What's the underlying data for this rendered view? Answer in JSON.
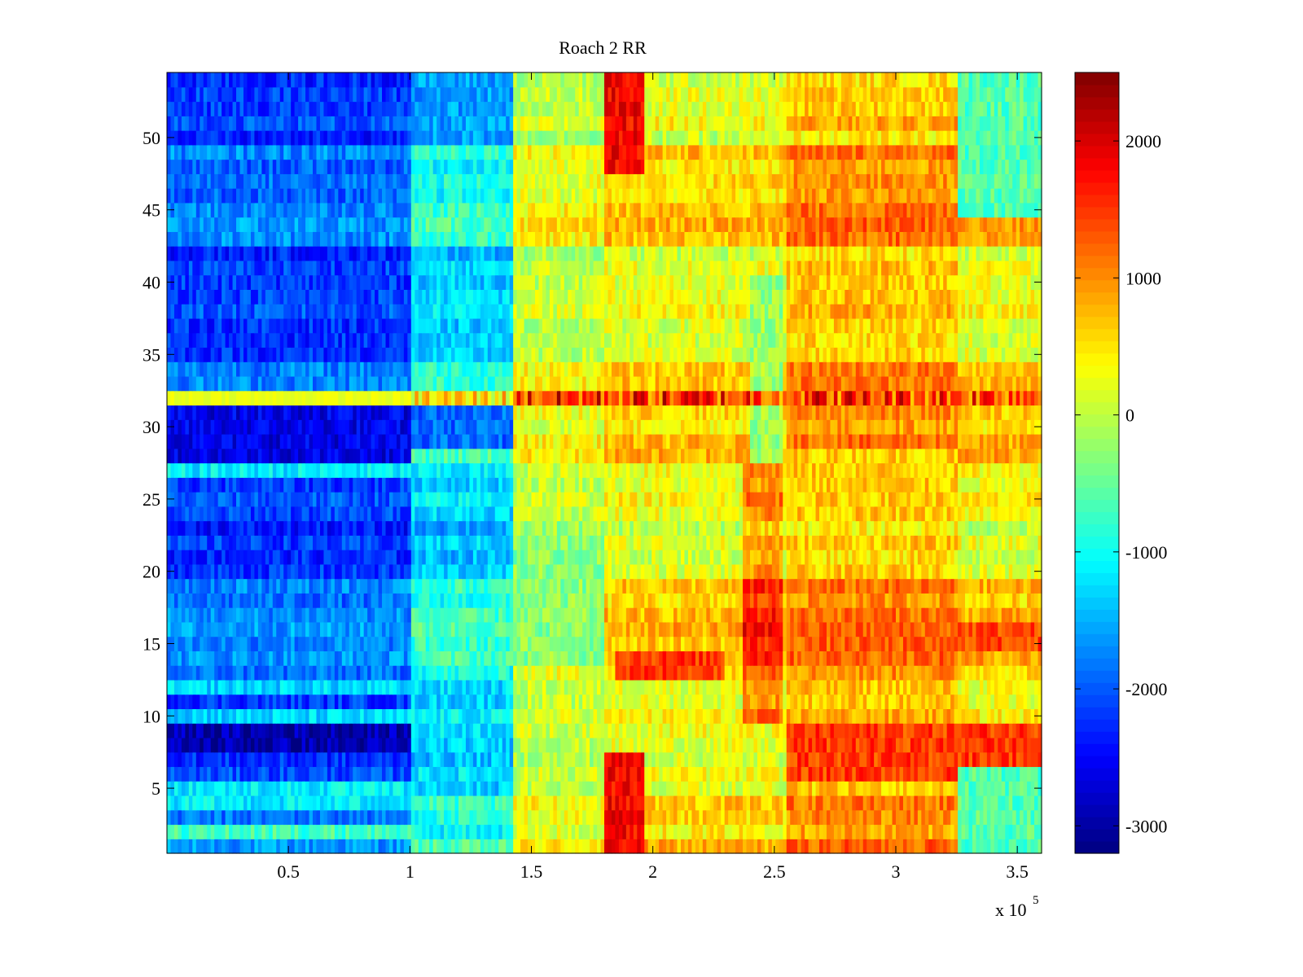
{
  "chart_data": {
    "type": "heatmap",
    "title": "Roach 2 RR",
    "xlabel": "",
    "ylabel": "",
    "x_exponent_label": "x 10",
    "x_exponent_power": "5",
    "xlim": [
      0,
      3.6
    ],
    "ylim": [
      0.5,
      54.5
    ],
    "xticks": [
      0.5,
      1,
      1.5,
      2,
      2.5,
      3,
      3.5
    ],
    "xtick_labels": [
      "0.5",
      "1",
      "1.5",
      "2",
      "2.5",
      "3",
      "3.5"
    ],
    "yticks": [
      5,
      10,
      15,
      20,
      25,
      30,
      35,
      40,
      45,
      50
    ],
    "ytick_labels": [
      "5",
      "10",
      "15",
      "20",
      "25",
      "30",
      "35",
      "40",
      "45",
      "50"
    ],
    "colorbar": {
      "colormap": "jet",
      "clim": [
        -3200,
        2500
      ],
      "ticks": [
        -3000,
        -2000,
        -1000,
        0,
        1000,
        2000
      ],
      "tick_labels": [
        "-3000",
        "-2000",
        "-1000",
        "0",
        "1000",
        "2000"
      ]
    },
    "rows": 54,
    "segments_x": [
      {
        "x_range": [
          0,
          1.0
        ],
        "typical_value": -2000
      },
      {
        "x_range": [
          1.0,
          1.43
        ],
        "typical_value": -1100
      },
      {
        "x_range": [
          1.43,
          1.8
        ],
        "typical_value": 200
      },
      {
        "x_range": [
          1.8,
          2.55
        ],
        "typical_value": 400
      },
      {
        "x_range": [
          2.55,
          3.25
        ],
        "typical_value": 900
      },
      {
        "x_range": [
          3.25,
          3.6
        ],
        "typical_value": 500
      }
    ],
    "row_notes": [
      {
        "row": 32,
        "description": "outlier row, near 0 at low x, up to 2400 at high x"
      },
      {
        "rows": [
          8,
          9
        ],
        "description": "darkest blue at low x (about -3000)"
      }
    ]
  }
}
